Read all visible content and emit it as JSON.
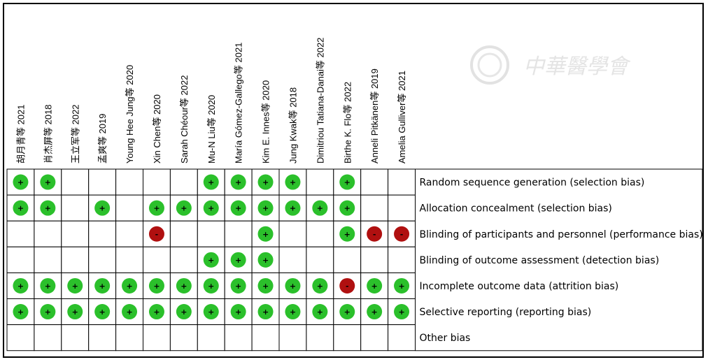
{
  "chart_data": {
    "type": "table",
    "subtype": "risk-of-bias summary",
    "studies": [
      "胡月青等 2021",
      "肖杰屏等 2018",
      "王立军等 2022",
      "孟爽等 2019",
      "Young Hee Jung等 2020",
      "Xin Chen等 2020",
      "Sarah Chéour等 2022",
      "Mu-N Liu等 2020",
      "María Gómez-Gallego等 2021",
      "Kim E. Innes等 2020",
      "Jung Kwak等 2018",
      "Dimitriou Tatiana-Danai等 2022",
      "Birthe K. Flo等 2022",
      "Anneli Pitkänen等 2019",
      "Amelia Gulliver等 2021"
    ],
    "domains": [
      "Random sequence generation (selection bias)",
      "Allocation concealment (selection bias)",
      "Blinding of participants and personnel (performance bias)",
      "Blinding of outcome assessment (detection bias)",
      "Incomplete outcome data (attrition bias)",
      "Selective reporting (reporting bias)",
      "Other bias"
    ],
    "legend": {
      "+": "low risk",
      "-": "high risk",
      "": "unclear"
    },
    "judgements": [
      [
        "+",
        "+",
        "",
        "",
        "",
        "",
        "",
        "+",
        "+",
        "+",
        "+",
        "",
        "+",
        "",
        ""
      ],
      [
        "+",
        "+",
        "",
        "+",
        "",
        "+",
        "+",
        "+",
        "+",
        "+",
        "+",
        "+",
        "+",
        "",
        ""
      ],
      [
        "",
        "",
        "",
        "",
        "",
        "-",
        "",
        "",
        "",
        "+",
        "",
        "",
        "+",
        "-",
        "-"
      ],
      [
        "",
        "",
        "",
        "",
        "",
        "",
        "",
        "+",
        "+",
        "+",
        "",
        "",
        "",
        "",
        ""
      ],
      [
        "+",
        "+",
        "+",
        "+",
        "+",
        "+",
        "+",
        "+",
        "+",
        "+",
        "+",
        "+",
        "-",
        "+",
        "+"
      ],
      [
        "+",
        "+",
        "+",
        "+",
        "+",
        "+",
        "+",
        "+",
        "+",
        "+",
        "+",
        "+",
        "+",
        "+",
        "+"
      ],
      [
        "",
        "",
        "",
        "",
        "",
        "",
        "",
        "",
        "",
        "",
        "",
        "",
        "",
        "",
        ""
      ]
    ],
    "colors": {
      "low": "#2bc02b",
      "high": "#b01010",
      "grid": "#000000"
    }
  },
  "watermark": {
    "text": "中華醫學會"
  }
}
